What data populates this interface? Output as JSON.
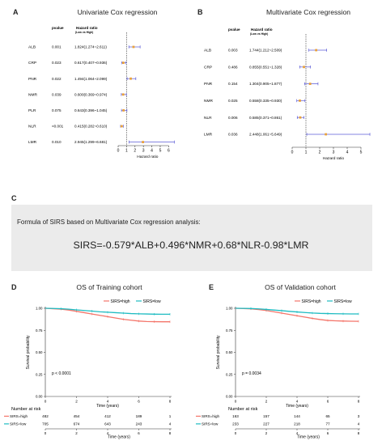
{
  "panels": {
    "A": {
      "label": "A",
      "title": "Univariate Cox regression"
    },
    "B": {
      "label": "B",
      "title": "Multivariate Cox regression"
    },
    "C": {
      "label": "C"
    },
    "D": {
      "label": "D",
      "title": "OS of Training cohort"
    },
    "E": {
      "label": "E",
      "title": "OS of Validation cohort"
    }
  },
  "formula": {
    "caption": "Formula of SIRS based on Multivariate Cox regression analysis:",
    "equation": "SIRS=-0.579*ALB+0.496*NMR+0.68*NLR-0.98*LMR"
  },
  "colors": {
    "high": "#f4756a",
    "low": "#1fbcc2",
    "ci_line": "#5b5bd6",
    "formula_bg": "#ebebeb"
  },
  "chart_data": [
    {
      "type": "forest",
      "title": "Univariate Cox regression",
      "pvalue_header": "pvalue",
      "hr_header": "Hazard ratio",
      "hr_subheader": "(Low vs High)",
      "xlabel": "Hazard ratio",
      "xlim": [
        0,
        7
      ],
      "xticks": [
        0,
        1,
        2,
        3,
        4,
        5,
        6
      ],
      "reference_line": 1,
      "rows": [
        {
          "variable": "ALB",
          "pvalue": "0.001",
          "hr_text": "1.824(1.274~2.611)",
          "hr": 1.824,
          "lower": 1.274,
          "upper": 2.611
        },
        {
          "variable": "CRP",
          "pvalue": "0.023",
          "hr_text": "0.617(0.407~0.936)",
          "hr": 0.617,
          "lower": 0.407,
          "upper": 0.936
        },
        {
          "variable": "PNR",
          "pvalue": "0.022",
          "hr_text": "1.494(1.064~2.099)",
          "hr": 1.494,
          "lower": 1.064,
          "upper": 2.099
        },
        {
          "variable": "NMR",
          "pvalue": "0.039",
          "hr_text": "0.600(0.369~0.974)",
          "hr": 0.6,
          "lower": 0.369,
          "upper": 0.974
        },
        {
          "variable": "PLR",
          "pvalue": "0.075",
          "hr_text": "0.643(0.396~1.045)",
          "hr": 0.643,
          "lower": 0.396,
          "upper": 1.045
        },
        {
          "variable": "NLR",
          "pvalue": "<0.001",
          "hr_text": "0.415(0.282~0.610)",
          "hr": 0.415,
          "lower": 0.282,
          "upper": 0.61
        },
        {
          "variable": "LMR",
          "pvalue": "0.010",
          "hr_text": "2.945(1.299~6.681)",
          "hr": 2.945,
          "lower": 1.299,
          "upper": 6.681
        }
      ]
    },
    {
      "type": "forest",
      "title": "Multivariate Cox regression",
      "pvalue_header": "pvalue",
      "hr_header": "Hazard ratio",
      "hr_subheader": "(Low vs High)",
      "xlabel": "Hazard ratio",
      "xlim": [
        0,
        6
      ],
      "xticks": [
        0,
        1,
        2,
        3,
        4,
        5
      ],
      "reference_line": 1,
      "rows": [
        {
          "variable": "ALB",
          "pvalue": "0.003",
          "hr_text": "1.744(1.212~2.509)",
          "hr": 1.744,
          "lower": 1.212,
          "upper": 2.509
        },
        {
          "variable": "CRP",
          "pvalue": "0.486",
          "hr_text": "0.855(0.551~1.328)",
          "hr": 0.855,
          "lower": 0.551,
          "upper": 1.328
        },
        {
          "variable": "PNR",
          "pvalue": "0.154",
          "hr_text": "1.304(0.905~1.877)",
          "hr": 1.304,
          "lower": 0.905,
          "upper": 1.877
        },
        {
          "variable": "NMR",
          "pvalue": "0.025",
          "hr_text": "0.558(0.335~0.930)",
          "hr": 0.558,
          "lower": 0.335,
          "upper": 0.93
        },
        {
          "variable": "NLR",
          "pvalue": "0.006",
          "hr_text": "0.585(0.371~0.861)",
          "hr": 0.585,
          "lower": 0.371,
          "upper": 0.861
        },
        {
          "variable": "LMR",
          "pvalue": "0.036",
          "hr_text": "2.448(1.061~5.649)",
          "hr": 2.448,
          "lower": 1.061,
          "upper": 5.649
        }
      ]
    },
    {
      "type": "line",
      "title": "OS of Training cohort",
      "xlabel": "Time (years)",
      "ylabel": "Survival probability",
      "xlim": [
        0,
        8
      ],
      "ylim": [
        0,
        1
      ],
      "xticks": [
        0,
        2,
        4,
        6,
        8
      ],
      "yticks": [
        "0.00",
        "0.25",
        "0.50",
        "0.75",
        "1.00"
      ],
      "pvalue_text": "p < 0.0001",
      "legend": "top-right",
      "series": [
        {
          "name": "SIRS=high",
          "color": "#f4756a",
          "x": [
            0,
            0.5,
            1,
            1.5,
            2,
            2.5,
            3,
            3.5,
            4,
            4.5,
            5,
            5.5,
            6,
            6.5,
            7,
            7.5,
            8
          ],
          "y": [
            1.0,
            0.995,
            0.99,
            0.98,
            0.965,
            0.95,
            0.935,
            0.92,
            0.905,
            0.89,
            0.875,
            0.865,
            0.855,
            0.85,
            0.848,
            0.847,
            0.847
          ]
        },
        {
          "name": "SIRS=low",
          "color": "#1fbcc2",
          "x": [
            0,
            0.5,
            1,
            1.5,
            2,
            2.5,
            3,
            3.5,
            4,
            4.5,
            5,
            5.5,
            6,
            6.5,
            7,
            7.5,
            8
          ],
          "y": [
            1.0,
            0.998,
            0.995,
            0.99,
            0.982,
            0.975,
            0.968,
            0.96,
            0.955,
            0.95,
            0.945,
            0.94,
            0.937,
            0.935,
            0.933,
            0.932,
            0.932
          ]
        }
      ],
      "risk_table": {
        "heading": "Number at risk",
        "xlabel": "Time (years)",
        "times": [
          0,
          2,
          4,
          6,
          8
        ],
        "rows": [
          {
            "name": "SIRS=high",
            "values": [
              "482",
              "454",
              "412",
              "189",
              "1"
            ]
          },
          {
            "name": "SIRS=low",
            "values": [
              "705",
              "674",
              "643",
              "243",
              "4"
            ]
          }
        ]
      }
    },
    {
      "type": "line",
      "title": "OS of Validation cohort",
      "xlabel": "Time (years)",
      "ylabel": "Survival probability",
      "xlim": [
        0,
        8
      ],
      "ylim": [
        0,
        1
      ],
      "xticks": [
        0,
        2,
        4,
        6,
        8
      ],
      "yticks": [
        "0.00",
        "0.25",
        "0.50",
        "0.75",
        "1.00"
      ],
      "pvalue_text": "p = 0.0034",
      "legend": "top-right",
      "series": [
        {
          "name": "SIRS=high",
          "color": "#f4756a",
          "x": [
            0,
            0.5,
            1,
            1.5,
            2,
            2.5,
            3,
            3.5,
            4,
            4.5,
            5,
            5.5,
            6,
            6.5,
            7,
            7.5,
            8
          ],
          "y": [
            1.0,
            0.997,
            0.993,
            0.985,
            0.975,
            0.96,
            0.945,
            0.93,
            0.915,
            0.9,
            0.885,
            0.872,
            0.862,
            0.858,
            0.855,
            0.853,
            0.852
          ]
        },
        {
          "name": "SIRS=low",
          "color": "#1fbcc2",
          "x": [
            0,
            0.5,
            1,
            1.5,
            2,
            2.5,
            3,
            3.5,
            4,
            4.5,
            5,
            5.5,
            6,
            6.5,
            7,
            7.5,
            8
          ],
          "y": [
            1.0,
            0.999,
            0.997,
            0.993,
            0.987,
            0.98,
            0.973,
            0.965,
            0.958,
            0.952,
            0.946,
            0.942,
            0.94,
            0.938,
            0.937,
            0.936,
            0.936
          ]
        }
      ],
      "risk_table": {
        "heading": "Number at risk",
        "xlabel": "Time (years)",
        "times": [
          0,
          2,
          4,
          6,
          8
        ],
        "rows": [
          {
            "name": "SIRS=high",
            "values": [
              "163",
              "157",
              "144",
              "65",
              "3"
            ]
          },
          {
            "name": "SIRS=low",
            "values": [
              "233",
              "227",
              "218",
              "77",
              "4"
            ]
          }
        ]
      }
    }
  ]
}
